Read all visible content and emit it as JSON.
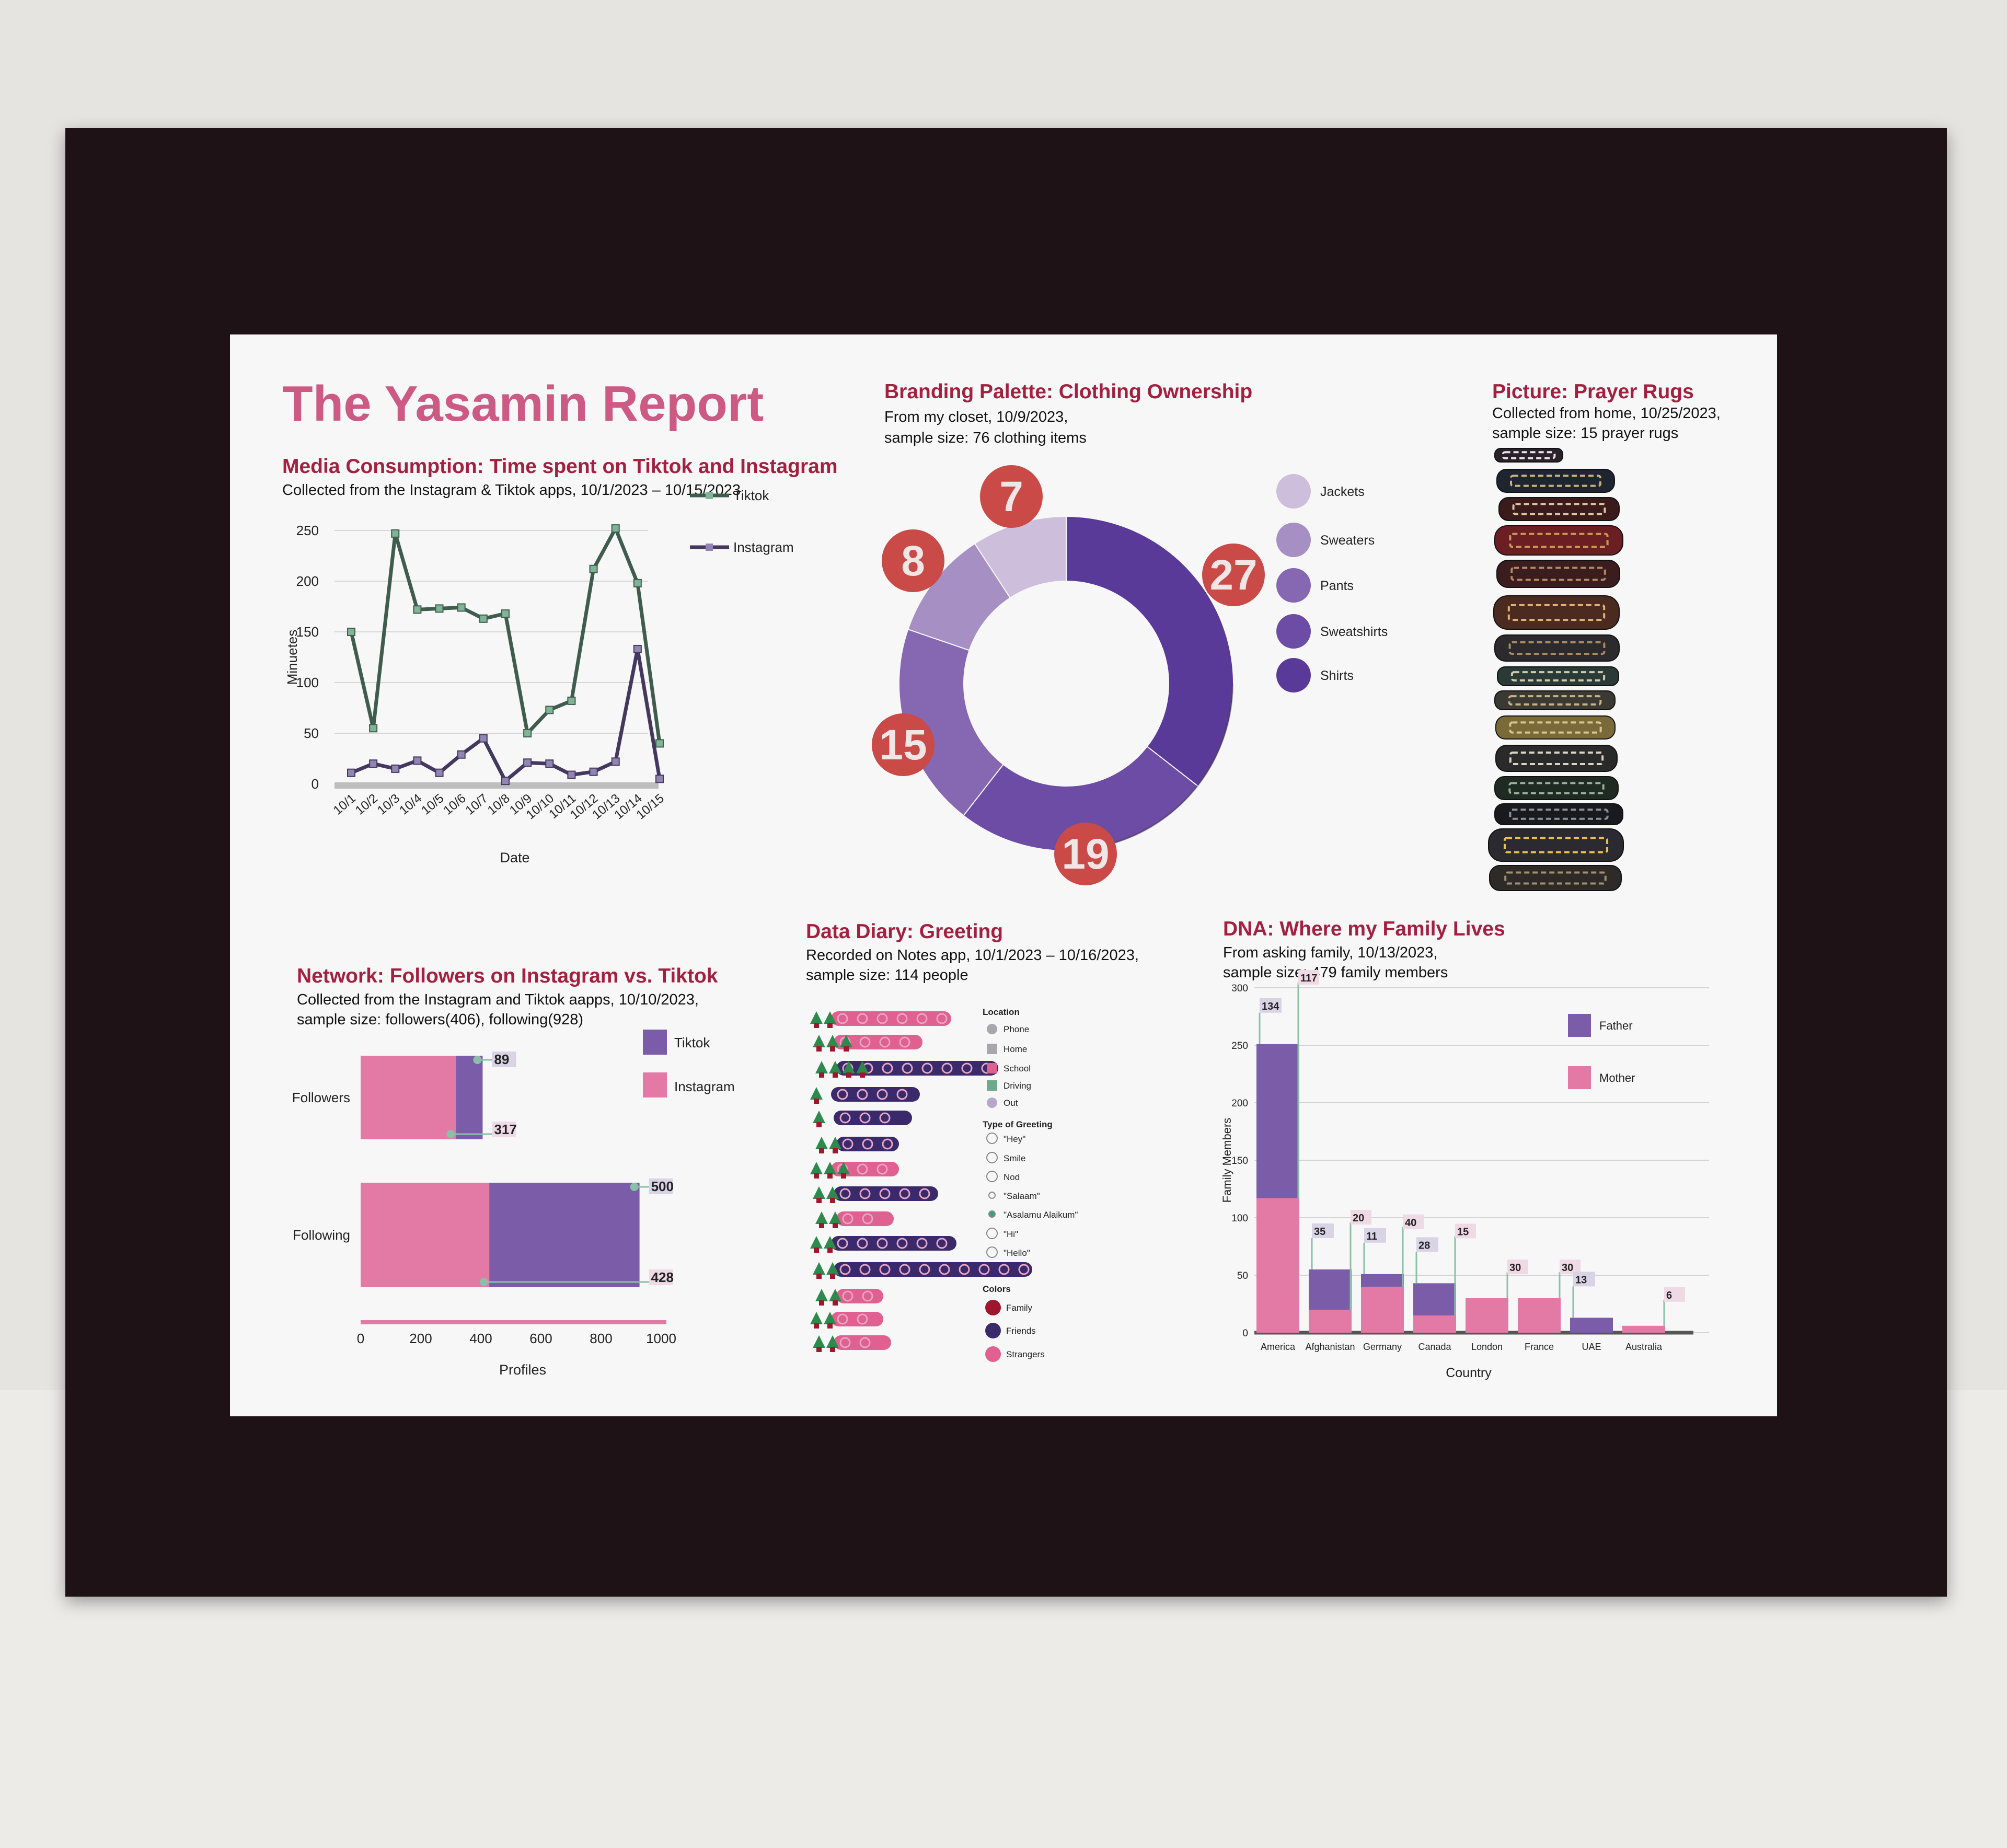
{
  "title": "The Yasamin Report",
  "media": {
    "heading": "Media Consumption: Time spent on Tiktok and Instagram",
    "sub": "Collected from the Instagram & Tiktok apps, 10/1/2023 – 10/15/2023"
  },
  "branding": {
    "heading": "Branding Palette: Clothing Ownership",
    "sub1": "From my closet, 10/9/2023,",
    "sub2": "sample size: 76 clothing items"
  },
  "rugs": {
    "heading": "Picture: Prayer Rugs",
    "sub1": "Collected from home, 10/25/2023,",
    "sub2": "sample size: 15 prayer rugs"
  },
  "network": {
    "heading": "Network: Followers on Instagram vs. Tiktok",
    "sub1": "Collected from the Instagram and Tiktok aapps, 10/10/2023,",
    "sub2": "sample size: followers(406), following(928)"
  },
  "diary": {
    "heading": "Data Diary: Greeting",
    "sub1": "Recorded on Notes app, 10/1/2023 – 10/16/2023,",
    "sub2": "sample size: 114 people",
    "legend_location_title": "Location",
    "legend_location": [
      "Phone",
      "Home",
      "School",
      "Driving",
      "Out"
    ],
    "legend_greeting_title": "Type of Greeting",
    "legend_greeting": [
      "\"Hey\"",
      "Smile",
      "Nod",
      "\"Salaam\"",
      "\"Asalamu Alaikum\"",
      "\"Hi\"",
      "\"Hello\""
    ],
    "legend_colors_title": "Colors",
    "legend_colors": [
      "Family",
      "Friends",
      "Strangers"
    ],
    "colors": {
      "family": "#a0172d",
      "friends": "#3a2a6b",
      "strangers": "#e0608f",
      "tree": "#2e8a4c"
    }
  },
  "dna": {
    "heading": "DNA: Where my Family Lives",
    "sub1": "From asking family, 10/13/2023,",
    "sub2": "sample size: 479 family members"
  },
  "colors": {
    "title": "#cc5a82",
    "heading": "#a3203f",
    "purple": "#7a5ca8",
    "pink": "#e27aa5",
    "tiktok": "#3f5c4f",
    "instagram": "#45385f",
    "badge": "#c94a46"
  },
  "chart_data": [
    {
      "type": "line",
      "x": [
        "10/1",
        "10/2",
        "10/3",
        "10/4",
        "10/5",
        "10/6",
        "10/7",
        "10/8",
        "10/9",
        "10/10",
        "10/11",
        "10/12",
        "10/13",
        "10/14",
        "10/15"
      ],
      "series": [
        {
          "name": "Tiktok",
          "values": [
            150,
            55,
            247,
            172,
            173,
            174,
            163,
            168,
            50,
            73,
            82,
            212,
            252,
            198,
            40
          ]
        },
        {
          "name": "Instagram",
          "values": [
            11,
            20,
            15,
            23,
            11,
            29,
            45,
            3,
            21,
            20,
            9,
            12,
            22,
            133,
            5
          ]
        }
      ],
      "xlabel": "Date",
      "ylabel": "Minuetes",
      "yticks": [
        0,
        50,
        100,
        150,
        200,
        250
      ],
      "ylim": [
        0,
        250
      ],
      "legend": "right"
    },
    {
      "type": "pie",
      "categories": [
        "Jackets",
        "Sweaters",
        "Pants",
        "Sweatshirts",
        "Shirts"
      ],
      "values": [
        7,
        8,
        15,
        19,
        27
      ],
      "colors": [
        "#cdbfdc",
        "#a58fc3",
        "#8567b2",
        "#6c4ca5",
        "#5a3a98"
      ],
      "legend": "right"
    },
    {
      "type": "bar",
      "orientation": "horizontal",
      "categories": [
        "Followers",
        "Following"
      ],
      "series": [
        {
          "name": "Tiktok",
          "values": [
            89,
            500
          ]
        },
        {
          "name": "Instagram",
          "values": [
            317,
            428
          ]
        }
      ],
      "xlabel": "Profiles",
      "xticks": [
        0,
        200,
        400,
        600,
        800,
        1000
      ],
      "xlim": [
        0,
        1000
      ],
      "legend": "right"
    },
    {
      "type": "bar",
      "stacked": true,
      "categories": [
        "America",
        "Afghanistan",
        "Germany",
        "Canada",
        "London",
        "France",
        "UAE",
        "Australia"
      ],
      "series": [
        {
          "name": "Father",
          "values": [
            134,
            35,
            11,
            28,
            0,
            0,
            13,
            0
          ]
        },
        {
          "name": "Mother",
          "values": [
            117,
            20,
            40,
            15,
            30,
            30,
            0,
            6
          ]
        }
      ],
      "xlabel": "Country",
      "ylabel": "Family Members",
      "yticks": [
        0,
        50,
        100,
        150,
        200,
        250,
        300
      ],
      "ylim": [
        0,
        300
      ],
      "legend": "top-right"
    }
  ]
}
